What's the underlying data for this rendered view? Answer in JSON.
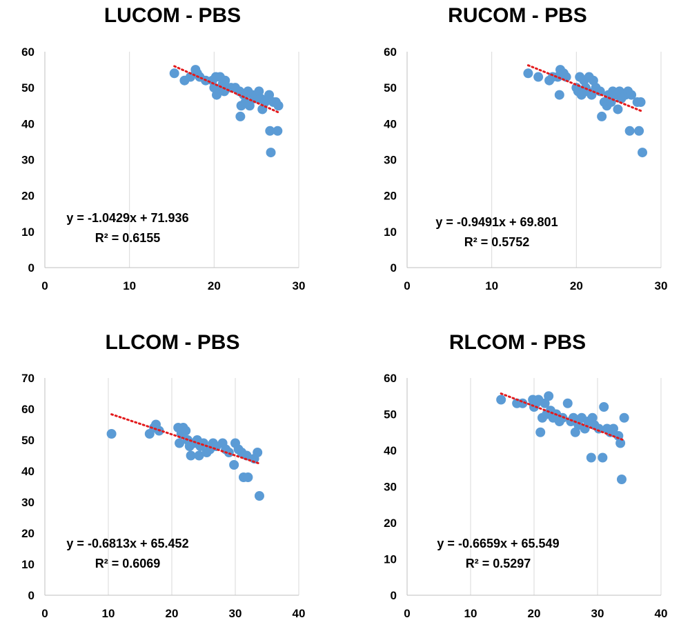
{
  "chart_data": [
    {
      "type": "scatter",
      "title": "LUCOM - PBS",
      "xlim": [
        0,
        30
      ],
      "ylim": [
        0,
        60
      ],
      "xticks": [
        0,
        10,
        20,
        30
      ],
      "yticks": [
        0,
        10,
        20,
        30,
        40,
        50,
        60
      ],
      "grid": "vertical",
      "trendline": {
        "slope": -1.0429,
        "intercept": 71.936,
        "x_range": [
          15.3,
          27.6
        ]
      },
      "equation": "y = -1.0429x + 71.936",
      "r2": "R² = 0.6155",
      "points": [
        [
          15.3,
          54
        ],
        [
          16.5,
          52
        ],
        [
          17.2,
          53
        ],
        [
          17.8,
          55
        ],
        [
          18,
          54
        ],
        [
          18.3,
          53
        ],
        [
          19,
          52
        ],
        [
          19.8,
          52
        ],
        [
          20,
          50
        ],
        [
          20.2,
          53
        ],
        [
          20.3,
          48
        ],
        [
          20.5,
          49
        ],
        [
          20.7,
          53
        ],
        [
          21,
          51
        ],
        [
          21.2,
          49
        ],
        [
          21.3,
          52
        ],
        [
          22,
          50
        ],
        [
          22.5,
          50
        ],
        [
          23,
          49
        ],
        [
          23.1,
          42
        ],
        [
          23.2,
          45
        ],
        [
          23.5,
          48
        ],
        [
          23.7,
          46
        ],
        [
          24,
          49
        ],
        [
          24.2,
          45
        ],
        [
          24.5,
          48
        ],
        [
          24.8,
          47
        ],
        [
          25,
          48
        ],
        [
          25.3,
          49
        ],
        [
          25.5,
          47
        ],
        [
          25.7,
          44
        ],
        [
          26,
          46
        ],
        [
          26.5,
          48
        ],
        [
          26.6,
          38
        ],
        [
          26.7,
          32
        ],
        [
          27,
          46
        ],
        [
          27.3,
          46
        ],
        [
          27.5,
          38
        ],
        [
          27.6,
          45
        ]
      ]
    },
    {
      "type": "scatter",
      "title": "RUCOM - PBS",
      "xlim": [
        0,
        30
      ],
      "ylim": [
        0,
        60
      ],
      "xticks": [
        0,
        10,
        20,
        30
      ],
      "yticks": [
        0,
        10,
        20,
        30,
        40,
        50,
        60
      ],
      "grid": "vertical",
      "trendline": {
        "slope": -0.9491,
        "intercept": 69.801,
        "x_range": [
          14.3,
          27.8
        ]
      },
      "equation": "y = -0.9491x + 69.801",
      "r2": "R² = 0.5752",
      "points": [
        [
          14.3,
          54
        ],
        [
          15.5,
          53
        ],
        [
          16.8,
          52
        ],
        [
          17.2,
          53
        ],
        [
          17.8,
          53
        ],
        [
          18,
          48
        ],
        [
          18.1,
          55
        ],
        [
          18.5,
          54
        ],
        [
          18.8,
          53
        ],
        [
          20,
          50
        ],
        [
          20.2,
          49
        ],
        [
          20.4,
          53
        ],
        [
          20.6,
          48
        ],
        [
          20.9,
          52
        ],
        [
          21.1,
          50
        ],
        [
          21.3,
          49
        ],
        [
          21.5,
          53
        ],
        [
          21.8,
          48
        ],
        [
          22,
          52
        ],
        [
          22.3,
          50
        ],
        [
          22.8,
          49
        ],
        [
          23,
          42
        ],
        [
          23.3,
          46
        ],
        [
          23.6,
          45
        ],
        [
          23.8,
          48
        ],
        [
          24.1,
          46
        ],
        [
          24.3,
          49
        ],
        [
          24.6,
          48
        ],
        [
          24.9,
          44
        ],
        [
          25.1,
          49
        ],
        [
          25.3,
          47
        ],
        [
          25.8,
          48
        ],
        [
          26.1,
          49
        ],
        [
          26.3,
          38
        ],
        [
          26.5,
          48
        ],
        [
          27.2,
          46
        ],
        [
          27.4,
          38
        ],
        [
          27.6,
          46
        ],
        [
          27.8,
          32
        ]
      ]
    },
    {
      "type": "scatter",
      "title": "LLCOM - PBS",
      "xlim": [
        0,
        40
      ],
      "ylim": [
        0,
        70
      ],
      "xticks": [
        0,
        10,
        20,
        30,
        40
      ],
      "yticks": [
        0,
        10,
        20,
        30,
        40,
        50,
        60,
        70
      ],
      "grid": "vertical",
      "trendline": {
        "slope": -0.6813,
        "intercept": 65.452,
        "x_range": [
          10.5,
          33.6
        ]
      },
      "equation": "y = -0.6813x + 65.452",
      "r2": "R² = 0.6069",
      "points": [
        [
          10.5,
          52
        ],
        [
          16.5,
          52
        ],
        [
          17.2,
          54
        ],
        [
          17.5,
          55
        ],
        [
          18,
          53
        ],
        [
          21,
          54
        ],
        [
          21.2,
          49
        ],
        [
          21.5,
          52
        ],
        [
          21.8,
          54
        ],
        [
          22.2,
          53
        ],
        [
          22.5,
          50
        ],
        [
          22.8,
          48
        ],
        [
          23,
          45
        ],
        [
          23.5,
          49
        ],
        [
          24,
          50
        ],
        [
          24.3,
          45
        ],
        [
          24.5,
          48
        ],
        [
          25,
          49
        ],
        [
          25.5,
          46
        ],
        [
          26,
          47
        ],
        [
          26.5,
          49
        ],
        [
          27,
          48
        ],
        [
          28,
          49
        ],
        [
          28.5,
          47
        ],
        [
          29,
          46
        ],
        [
          29.8,
          42
        ],
        [
          30,
          49
        ],
        [
          30.5,
          47
        ],
        [
          31,
          46
        ],
        [
          31.3,
          38
        ],
        [
          31.8,
          45
        ],
        [
          32,
          38
        ],
        [
          33,
          44
        ],
        [
          33.5,
          46
        ],
        [
          33.8,
          32
        ]
      ]
    },
    {
      "type": "scatter",
      "title": "RLCOM - PBS",
      "xlim": [
        0,
        40
      ],
      "ylim": [
        0,
        60
      ],
      "xticks": [
        0,
        10,
        20,
        30,
        40
      ],
      "yticks": [
        0,
        10,
        20,
        30,
        40,
        50,
        60
      ],
      "grid": "vertical",
      "trendline": {
        "slope": -0.6659,
        "intercept": 65.549,
        "x_range": [
          14.8,
          34.2
        ]
      },
      "equation": "y = -0.6659x + 65.549",
      "r2": "R² = 0.5297",
      "points": [
        [
          14.8,
          54
        ],
        [
          17.3,
          53
        ],
        [
          18.2,
          53
        ],
        [
          19.8,
          54
        ],
        [
          20,
          52
        ],
        [
          20.3,
          53
        ],
        [
          20.7,
          54
        ],
        [
          21,
          45
        ],
        [
          21.3,
          49
        ],
        [
          21.7,
          53
        ],
        [
          22,
          50
        ],
        [
          22.3,
          55
        ],
        [
          22.6,
          51
        ],
        [
          23,
          49
        ],
        [
          23.5,
          50
        ],
        [
          24,
          48
        ],
        [
          24.5,
          49
        ],
        [
          25.3,
          53
        ],
        [
          25.8,
          48
        ],
        [
          26.2,
          49
        ],
        [
          26.5,
          45
        ],
        [
          27,
          47
        ],
        [
          27.5,
          49
        ],
        [
          28,
          46
        ],
        [
          28.5,
          48
        ],
        [
          29,
          38
        ],
        [
          29.2,
          49
        ],
        [
          29.5,
          47
        ],
        [
          30.2,
          46
        ],
        [
          30.8,
          38
        ],
        [
          31,
          52
        ],
        [
          31.5,
          46
        ],
        [
          32,
          45
        ],
        [
          32.5,
          46
        ],
        [
          33.3,
          44
        ],
        [
          33.6,
          42
        ],
        [
          33.8,
          32
        ],
        [
          34.2,
          49
        ]
      ]
    }
  ]
}
